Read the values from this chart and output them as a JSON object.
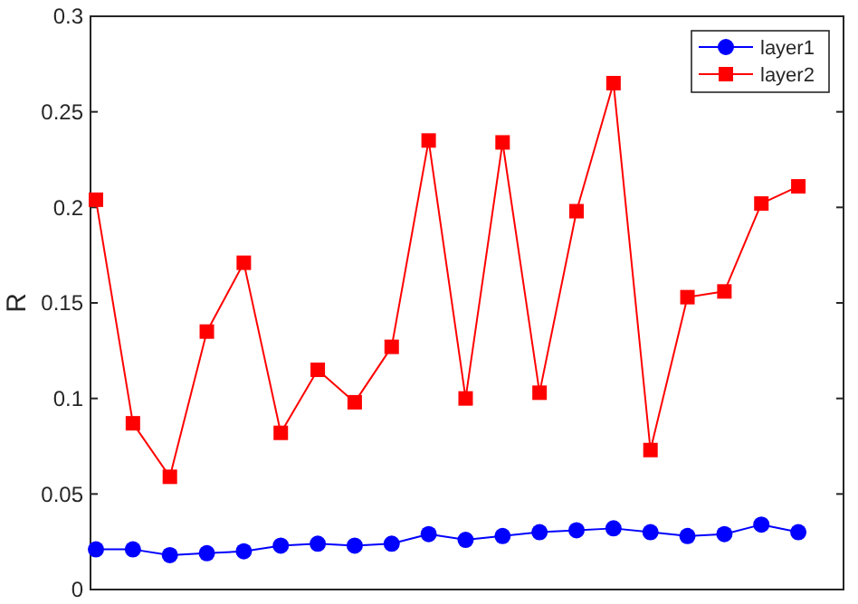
{
  "chart_data": {
    "type": "line",
    "ylabel": "R",
    "categories": [
      null,
      null,
      null,
      null,
      null,
      null,
      null,
      null,
      null,
      null,
      null,
      null,
      null,
      null,
      null,
      null,
      null,
      null,
      null,
      null
    ],
    "ylim": [
      0,
      0.3
    ],
    "yticks": [
      0,
      0.05,
      0.1,
      0.15,
      0.2,
      0.25,
      0.3
    ],
    "legend": "top right",
    "grid": false,
    "series": [
      {
        "name": "layer1",
        "color": "#0000ff",
        "marker": "circle",
        "values": [
          0.021,
          0.021,
          0.018,
          0.019,
          0.02,
          0.023,
          0.024,
          0.023,
          0.024,
          0.029,
          0.026,
          0.028,
          0.03,
          0.031,
          0.032,
          0.03,
          0.028,
          0.029,
          0.034,
          0.03
        ]
      },
      {
        "name": "layer2",
        "color": "#ff0000",
        "marker": "square",
        "values": [
          0.204,
          0.087,
          0.059,
          0.135,
          0.171,
          0.082,
          0.115,
          0.098,
          0.127,
          0.235,
          0.1,
          0.234,
          0.103,
          0.198,
          0.265,
          0.073,
          0.153,
          0.156,
          0.202,
          0.211
        ]
      }
    ]
  }
}
